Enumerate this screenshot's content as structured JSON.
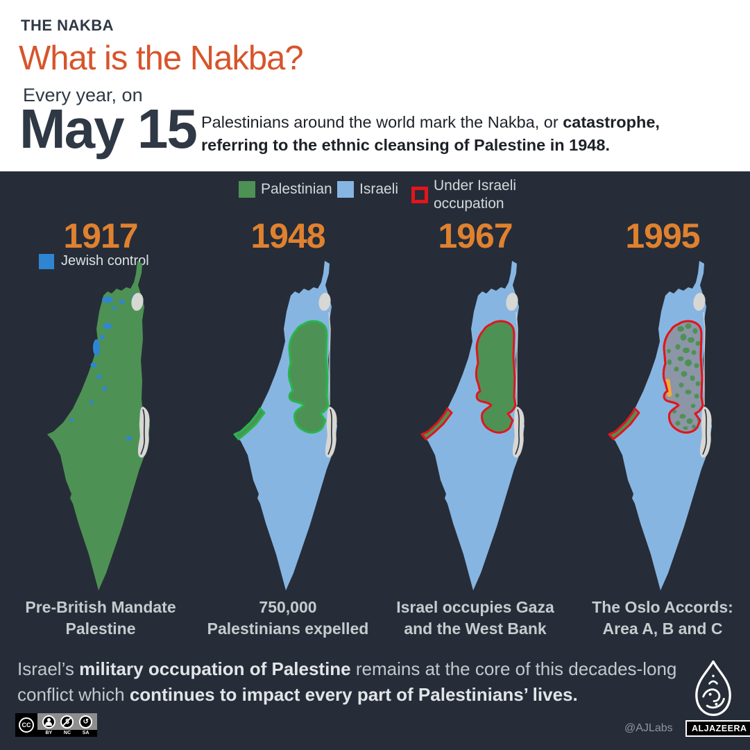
{
  "header": {
    "kicker": "THE NAKBA",
    "title": "What is the Nakba?",
    "lead_in": "Every year, on",
    "date": "May 15",
    "desc_part1": "Palestinians around the world mark the Nakba, or ",
    "desc_bold1": "catastrophe,",
    "desc_bold2": "referring to the ethnic cleansing of Palestine in 1948."
  },
  "legend": {
    "palestinian": "Palestinian",
    "israeli": "Israeli",
    "occupation_line1": "Under Israeli",
    "occupation_line2": "occupation",
    "jewish_control": "Jewish control"
  },
  "panels": [
    {
      "year": "1917",
      "caption_line1": "Pre-British Mandate",
      "caption_line2": "Palestine"
    },
    {
      "year": "1948",
      "caption_line1": "750,000",
      "caption_line2": "Palestinians expelled"
    },
    {
      "year": "1967",
      "caption_line1": "Israel occupies Gaza",
      "caption_line2": "and the West Bank"
    },
    {
      "year": "1995",
      "caption_line1": "The Oslo Accords:",
      "caption_line2": "Area A, B and C"
    }
  ],
  "footer": {
    "text_part1": "Israel’s ",
    "text_bold1": "military occupation of Palestine",
    "text_part2": " remains at the core of this decades-long",
    "text_part3": "conflict which ",
    "text_bold2": "continues to impact every part of Palestinians’ lives.",
    "cc": "CC",
    "cc_labels": {
      "by": "BY",
      "nc": "NC",
      "sa": "SA"
    },
    "nc_glyph": "$",
    "sa_glyph": "↺",
    "handle": "@AJLabs",
    "brand": "ALJAZEERA"
  },
  "colors": {
    "background": "#262D38",
    "header_bg": "#FFFFFF",
    "navy": "#2F3845",
    "title_orange": "#D8542B",
    "year_orange": "#E0812F",
    "palestinian_green": "#4E9155",
    "israeli_blue": "#87B5E1",
    "jewish_control_blue": "#2E86D3",
    "occupied_red": "#E2151B",
    "oslo_area_grey": "#8C96A7",
    "oslo_jerusalem_orange": "#F3A93C",
    "bright_green_outline": "#27B64C",
    "lake_grey": "#D7D7D3",
    "text_light": "#C9CDD1"
  }
}
